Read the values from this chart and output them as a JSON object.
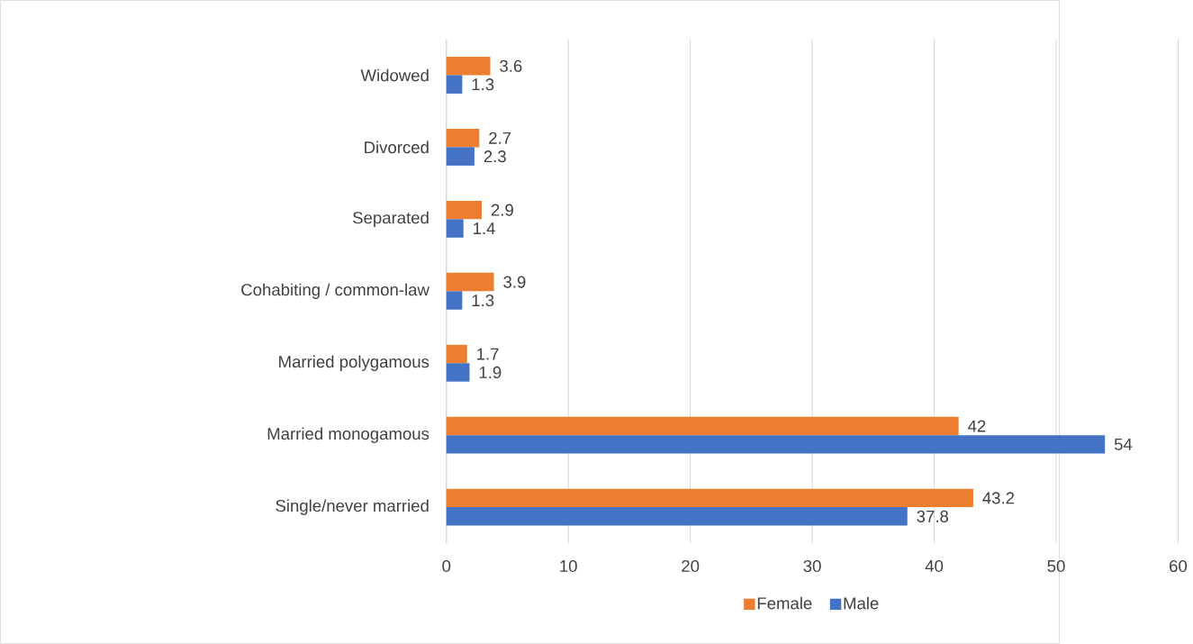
{
  "chart_data": {
    "type": "bar",
    "orientation": "horizontal",
    "categories": [
      "Widowed",
      "Divorced",
      "Separated",
      "Cohabiting / common-law",
      "Married polygamous",
      "Married monogamous",
      "Single/never married"
    ],
    "series": [
      {
        "name": "Female",
        "color": "#ed7d31",
        "values": [
          3.6,
          2.7,
          2.9,
          3.9,
          1.7,
          42,
          43.2
        ]
      },
      {
        "name": "Male",
        "color": "#4472c4",
        "values": [
          1.3,
          2.3,
          1.4,
          1.3,
          1.9,
          54,
          37.8
        ]
      }
    ],
    "xlim": [
      0,
      60
    ],
    "xticks": [
      0,
      10,
      20,
      30,
      40,
      50,
      60
    ],
    "grid": "x",
    "legend": "bottom",
    "data_labels": true
  }
}
